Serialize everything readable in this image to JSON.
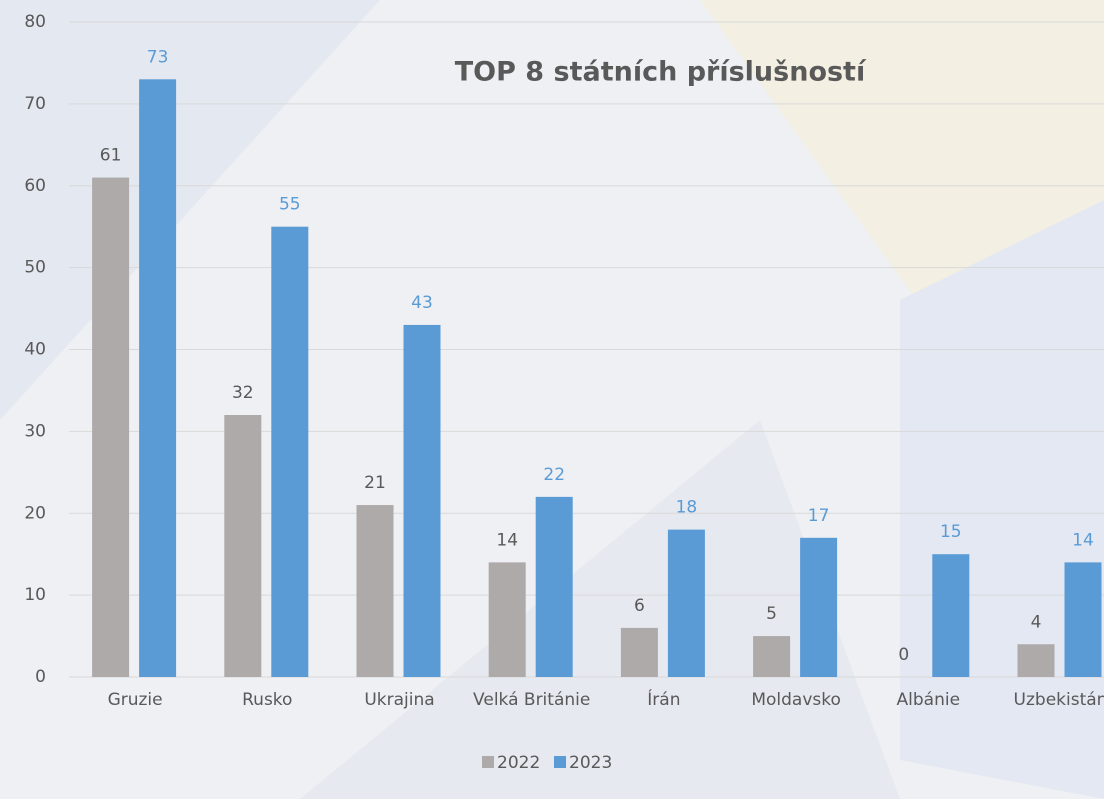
{
  "chart_data": {
    "type": "bar",
    "title": "TOP 8 státních příslušností",
    "categories": [
      "Gruzie",
      "Rusko",
      "Ukrajina",
      "Velká Británie",
      "Írán",
      "Moldavsko",
      "Albánie",
      "Uzbekistán"
    ],
    "series": [
      {
        "name": "2022",
        "color": "#aeaaaa",
        "values": [
          61,
          32,
          21,
          14,
          6,
          5,
          0,
          4
        ]
      },
      {
        "name": "2023",
        "color": "#5b9bd5",
        "values": [
          73,
          55,
          43,
          22,
          18,
          17,
          15,
          14
        ]
      }
    ],
    "ylim": [
      0,
      80
    ],
    "yticks": [
      0,
      10,
      20,
      30,
      40,
      50,
      60,
      70,
      80
    ],
    "grid": true,
    "legend": "bottom"
  }
}
